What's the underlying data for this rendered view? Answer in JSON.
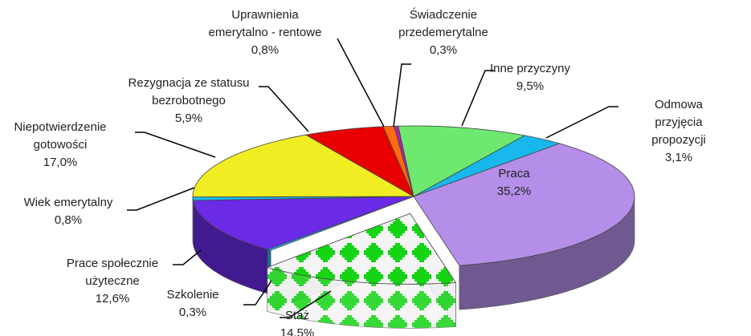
{
  "chart_data": {
    "type": "pie3d",
    "categories": [
      "Inne przyczyny",
      "Odmowa przyjęcia\npropozycji",
      "Praca",
      "Staż",
      "Szkolenie",
      "Prace społecznie\nużyteczne",
      "Wiek emerytalny",
      "Niepotwierdzenie\ngotowości",
      "Rezygnacja ze statusu\nbezrobotnego",
      "Uprawnienia\nemerytalno - rentowe",
      "Świadczenie\nprzedemerytalne"
    ],
    "values": [
      9.5,
      3.1,
      35.2,
      14.5,
      0.3,
      12.6,
      0.8,
      17.0,
      5.9,
      0.8,
      0.3
    ],
    "value_labels": [
      "9,5%",
      "3,1%",
      "35,2%",
      "14,5%",
      "0,3%",
      "12,6%",
      "0,8%",
      "17,0%",
      "5,9%",
      "0,8%",
      "0,3%"
    ],
    "colors": [
      "#6fe86f",
      "#18b8ec",
      "#b48ee8",
      "pattern",
      "#18b8ec",
      "#6a2ae6",
      "#18b8ec",
      "#f0ee22",
      "#e80000",
      "#ff6a10",
      "#b020b0"
    ],
    "exploded": [
      3
    ]
  }
}
